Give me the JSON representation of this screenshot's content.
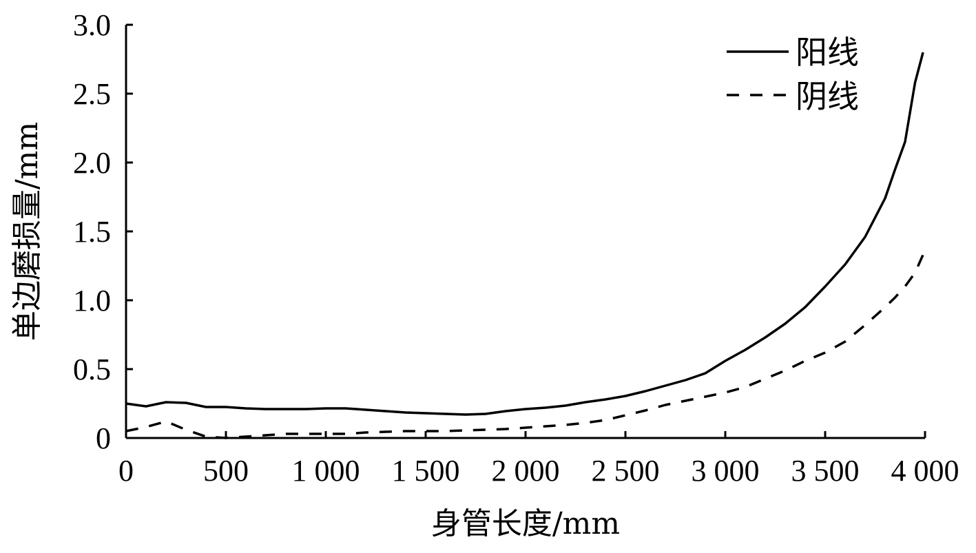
{
  "chart_data": {
    "type": "line",
    "title": "",
    "xlabel": "身管长度/mm",
    "ylabel": "单边磨损量/mm",
    "xlim": [
      0,
      4000
    ],
    "ylim": [
      0,
      3.0
    ],
    "x_ticks": [
      0,
      500,
      1000,
      1500,
      2000,
      2500,
      3000,
      3500,
      4000
    ],
    "x_tick_labels": [
      "0",
      "500",
      "1 000",
      "1 500",
      "2 000",
      "2 500",
      "3 000",
      "3 500",
      "4 000"
    ],
    "y_ticks": [
      0,
      0.5,
      1.0,
      1.5,
      2.0,
      2.5,
      3.0
    ],
    "y_tick_labels": [
      "0",
      "0.5",
      "1.0",
      "1.5",
      "2.0",
      "2.5",
      "3.0"
    ],
    "grid": false,
    "legend_position": "top-right",
    "series": [
      {
        "name": "阳线",
        "style": "solid",
        "color": "#000000",
        "x": [
          0,
          100,
          200,
          300,
          400,
          500,
          600,
          700,
          800,
          900,
          1000,
          1100,
          1200,
          1300,
          1400,
          1500,
          1600,
          1700,
          1800,
          1900,
          2000,
          2100,
          2200,
          2300,
          2400,
          2500,
          2600,
          2700,
          2800,
          2900,
          3000,
          3100,
          3200,
          3300,
          3400,
          3500,
          3600,
          3700,
          3800,
          3850,
          3900,
          3950,
          3990
        ],
        "y": [
          0.25,
          0.23,
          0.26,
          0.255,
          0.225,
          0.225,
          0.215,
          0.21,
          0.21,
          0.21,
          0.215,
          0.215,
          0.205,
          0.195,
          0.185,
          0.18,
          0.175,
          0.17,
          0.175,
          0.195,
          0.21,
          0.22,
          0.235,
          0.26,
          0.28,
          0.305,
          0.34,
          0.38,
          0.42,
          0.47,
          0.56,
          0.64,
          0.73,
          0.83,
          0.95,
          1.1,
          1.26,
          1.46,
          1.74,
          1.95,
          2.15,
          2.58,
          2.8
        ]
      },
      {
        "name": "阴线",
        "style": "dashed",
        "color": "#000000",
        "x": [
          0,
          100,
          200,
          300,
          400,
          500,
          600,
          700,
          800,
          900,
          1000,
          1100,
          1200,
          1300,
          1400,
          1500,
          1600,
          1700,
          1800,
          1900,
          2000,
          2100,
          2200,
          2300,
          2400,
          2500,
          2600,
          2700,
          2800,
          2900,
          3000,
          3100,
          3200,
          3300,
          3400,
          3500,
          3600,
          3700,
          3800,
          3850,
          3900,
          3950,
          3990
        ],
        "y": [
          0.05,
          0.08,
          0.12,
          0.06,
          0.01,
          0.0,
          0.01,
          0.02,
          0.03,
          0.03,
          0.03,
          0.03,
          0.04,
          0.045,
          0.05,
          0.05,
          0.05,
          0.055,
          0.06,
          0.065,
          0.075,
          0.085,
          0.095,
          0.11,
          0.13,
          0.165,
          0.2,
          0.24,
          0.27,
          0.3,
          0.33,
          0.37,
          0.43,
          0.49,
          0.56,
          0.62,
          0.7,
          0.82,
          0.95,
          1.02,
          1.1,
          1.2,
          1.33
        ]
      }
    ]
  }
}
